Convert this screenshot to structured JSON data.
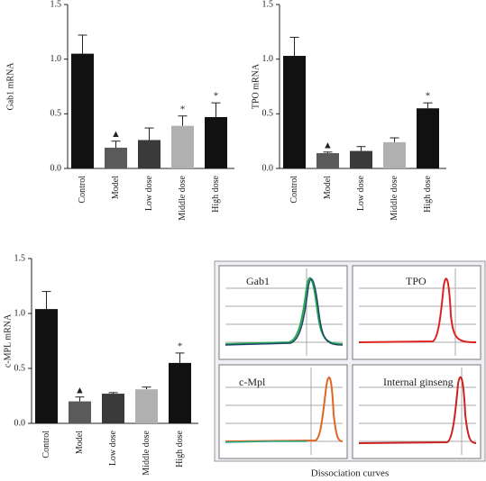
{
  "chart_data": [
    {
      "type": "bar",
      "ylabel": "Gab1 mRNA",
      "categories": [
        "Control",
        "Model",
        "Low dose",
        "Middle dose",
        "High dose"
      ],
      "values": [
        1.05,
        0.19,
        0.26,
        0.39,
        0.47
      ],
      "errors": [
        0.17,
        0.06,
        0.11,
        0.09,
        0.13
      ],
      "colors": [
        "#111111",
        "#5a5a5a",
        "#3a3a3a",
        "#b0b0b0",
        "#111111"
      ],
      "markers": [
        null,
        "▲",
        null,
        "*",
        "*"
      ],
      "ylim": [
        0,
        1.5
      ],
      "yticks": [
        {
          "value": 0,
          "label": "0.0"
        },
        0.5,
        {
          "value": 1,
          "label": "1.0"
        },
        1.5
      ]
    },
    {
      "type": "bar",
      "ylabel": "TPO mRNA",
      "categories": [
        "Control",
        "Model",
        "Low dose",
        "Middle dose",
        "High dose"
      ],
      "values": [
        1.03,
        0.14,
        0.16,
        0.24,
        0.55
      ],
      "errors": [
        0.17,
        0.01,
        0.04,
        0.04,
        0.05
      ],
      "colors": [
        "#111111",
        "#5a5a5a",
        "#3a3a3a",
        "#b0b0b0",
        "#111111"
      ],
      "markers": [
        null,
        "▲",
        null,
        null,
        "*"
      ],
      "ylim": [
        0,
        1.5
      ],
      "yticks": [
        {
          "value": 0,
          "label": "0.0"
        },
        0.5,
        {
          "value": 1,
          "label": "1.0"
        },
        1.5
      ]
    },
    {
      "type": "bar",
      "ylabel": "c-MPL mRNA",
      "categories": [
        "Control",
        "Model",
        "Low dose",
        "Middle dose",
        "High dose"
      ],
      "values": [
        1.04,
        0.2,
        0.27,
        0.31,
        0.55
      ],
      "errors": [
        0.16,
        0.04,
        0.01,
        0.02,
        0.09
      ],
      "colors": [
        "#111111",
        "#5a5a5a",
        "#3a3a3a",
        "#b0b0b0",
        "#111111"
      ],
      "markers": [
        null,
        "▲",
        null,
        null,
        "*"
      ],
      "ylim": [
        0,
        1.5
      ],
      "yticks": [
        {
          "value": 0,
          "label": "0.0"
        },
        0.5,
        {
          "value": 1,
          "label": "1.0"
        },
        1.5
      ]
    }
  ],
  "dissociation_panel": {
    "panels": [
      "Gab1",
      "TPO",
      "c-Mpl",
      "Internal ginseng"
    ],
    "caption": "Dissociation curves"
  }
}
